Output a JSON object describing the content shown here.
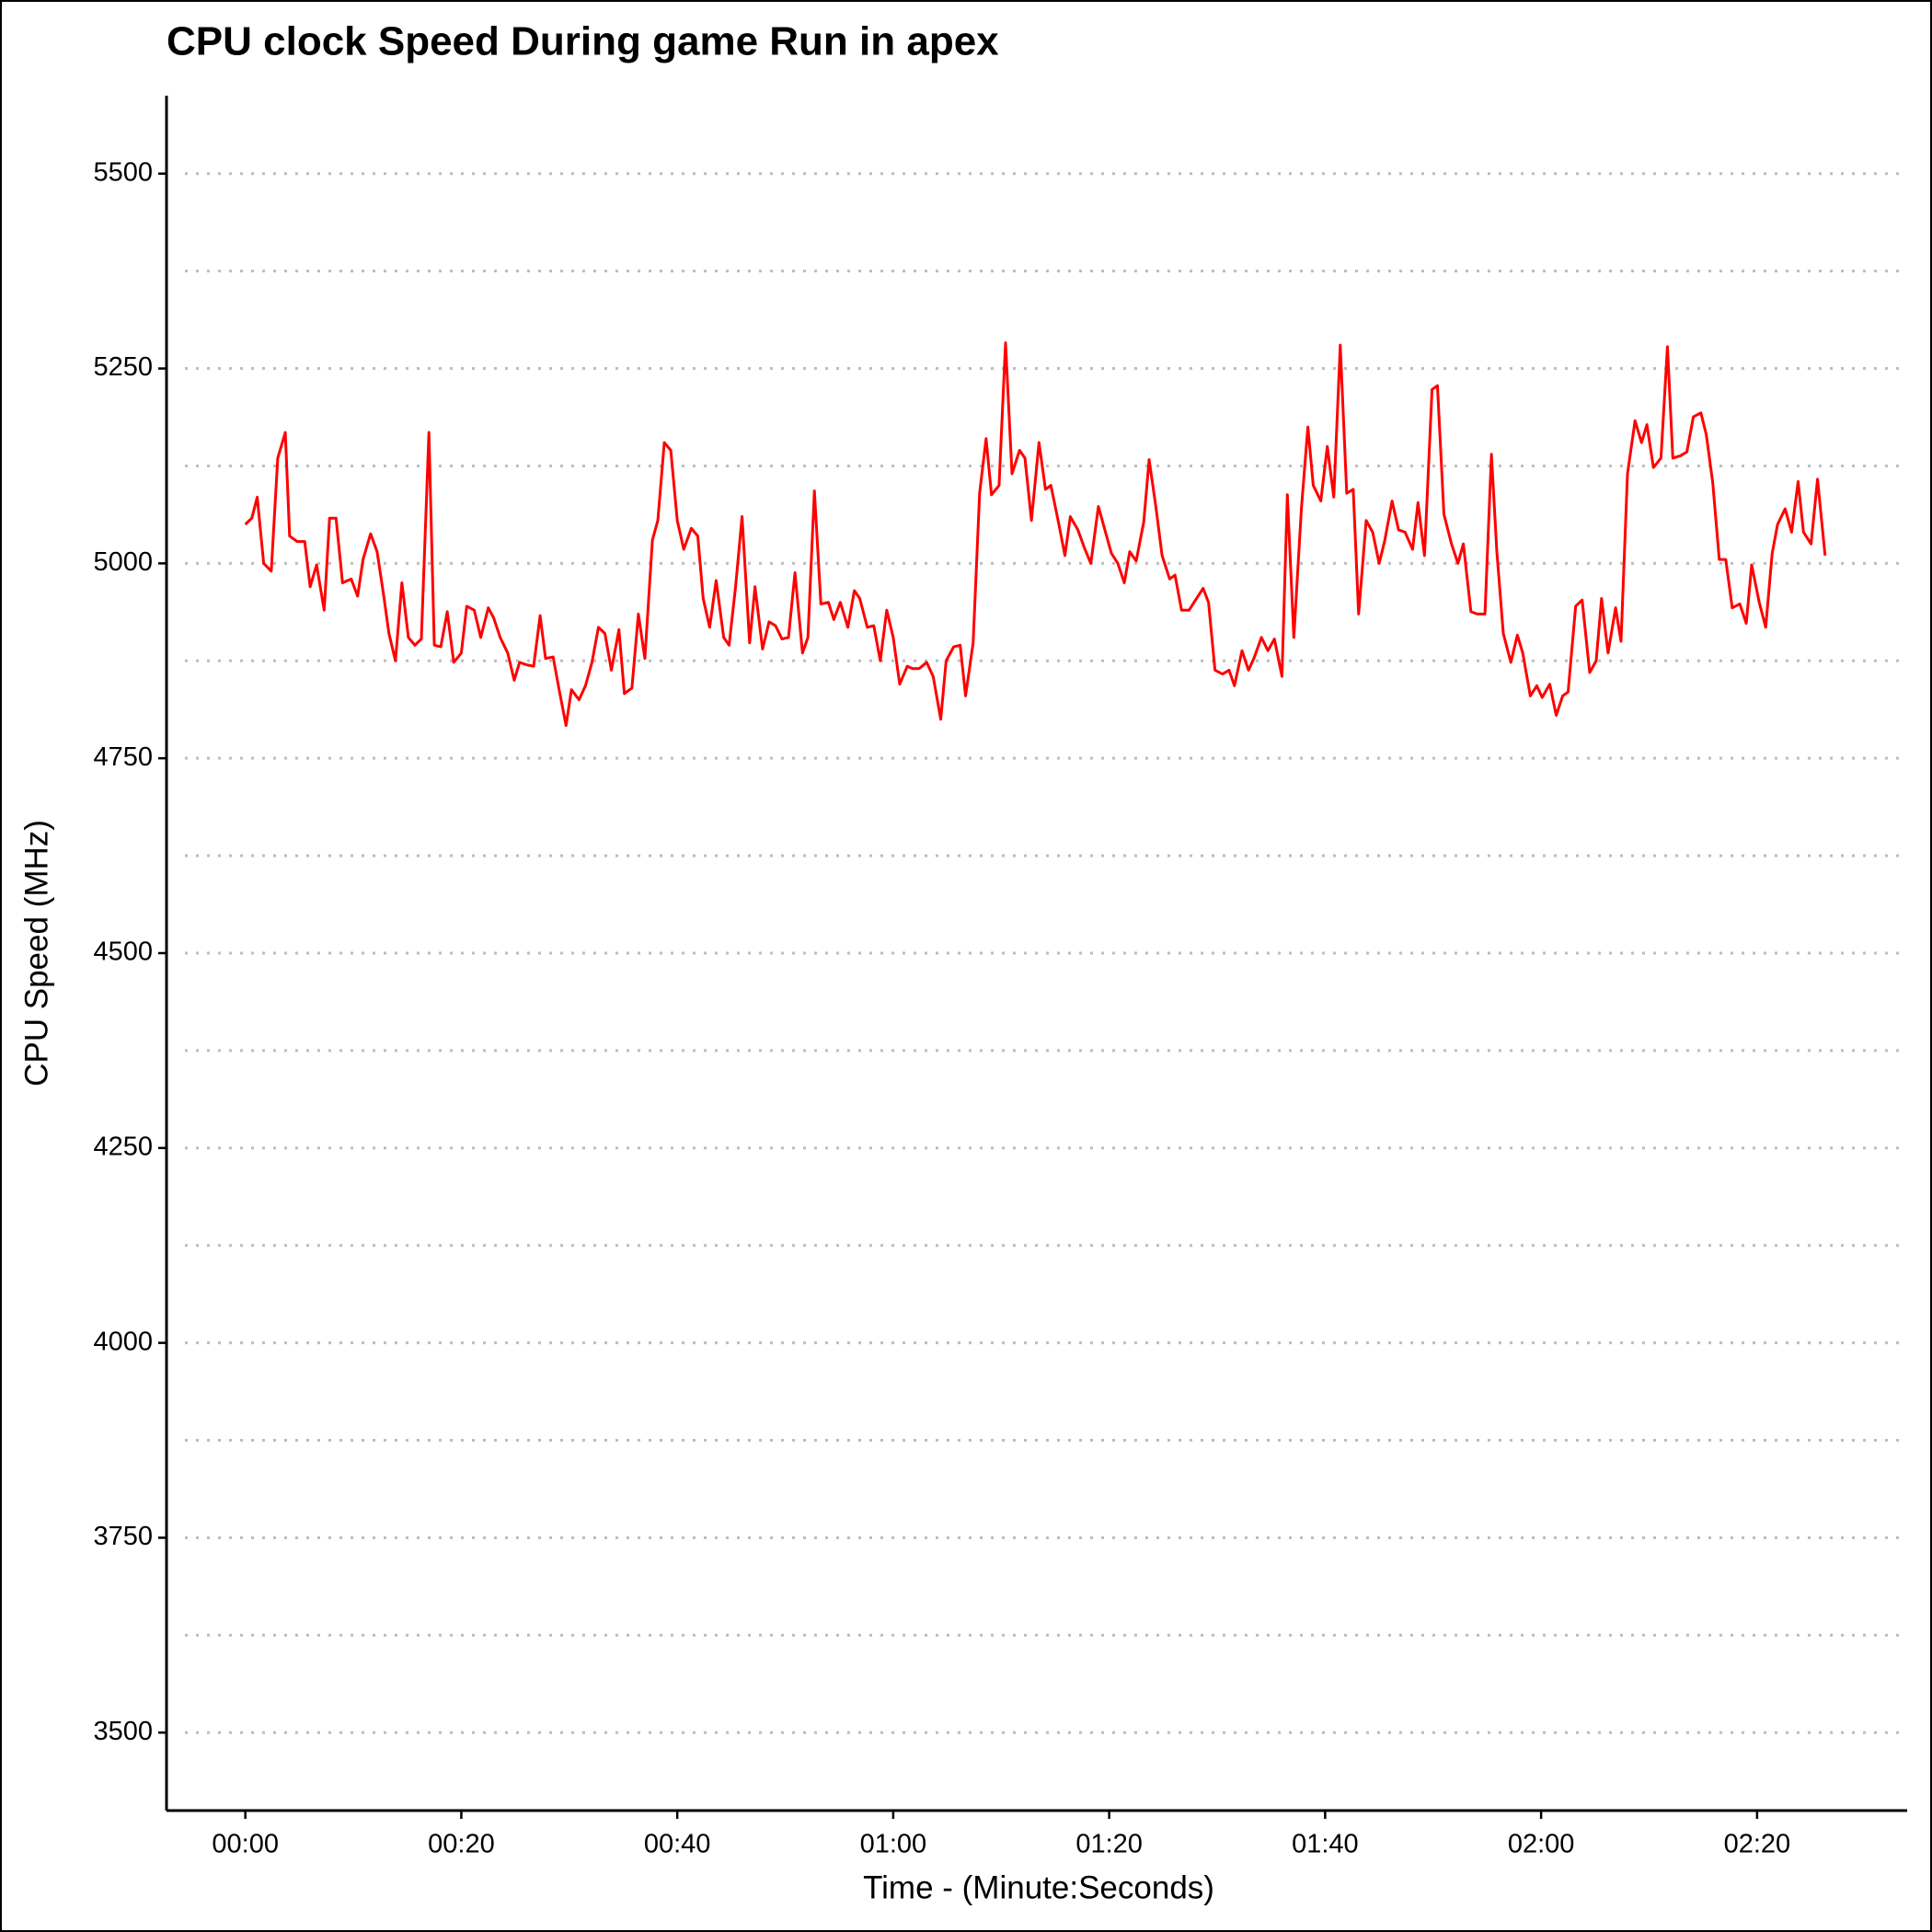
{
  "chart_data": {
    "type": "line",
    "title": "CPU clock Speed During game Run in apex",
    "x_label": "Time - (Minute:Seconds)",
    "y_label": "CPU Speed (MHz)",
    "xlim": [
      -7.3,
      153.9
    ],
    "ylim": [
      3400,
      5600
    ],
    "xticks": [
      {
        "value": 0,
        "label": "00:00"
      },
      {
        "value": 20,
        "label": "00:20"
      },
      {
        "value": 40,
        "label": "00:40"
      },
      {
        "value": 60,
        "label": "01:00"
      },
      {
        "value": 80,
        "label": "01:20"
      },
      {
        "value": 100,
        "label": "01:40"
      },
      {
        "value": 120,
        "label": "02:00"
      },
      {
        "value": 140,
        "label": "02:20"
      }
    ],
    "yticks": [
      3500,
      3750,
      4000,
      4250,
      4500,
      4750,
      5000,
      5250,
      5500
    ],
    "y_minor_grid": [
      3625,
      3875,
      4125,
      4375,
      4625,
      4875,
      5125,
      5375
    ],
    "grid": true,
    "x": [
      0,
      0.6,
      1.1,
      1.7,
      2.4,
      3.0,
      3.7,
      4.1,
      4.8,
      5.5,
      6.0,
      6.6,
      7.3,
      7.8,
      8.4,
      9.0,
      9.8,
      10.4,
      10.9,
      11.6,
      12.2,
      12.8,
      13.3,
      13.9,
      14.5,
      15.1,
      15.7,
      16.3,
      17.0,
      17.5,
      18.1,
      18.7,
      19.3,
      20.0,
      20.5,
      21.2,
      21.8,
      22.5,
      23.0,
      23.6,
      24.3,
      24.9,
      25.4,
      26.0,
      26.7,
      27.3,
      27.8,
      28.5,
      29.1,
      29.7,
      30.2,
      30.9,
      31.5,
      32.1,
      32.7,
      33.3,
      33.9,
      34.6,
      35.1,
      35.8,
      36.4,
      37.0,
      37.7,
      38.2,
      38.8,
      39.4,
      40.0,
      40.6,
      41.3,
      41.9,
      42.4,
      43.0,
      43.6,
      44.3,
      44.8,
      45.4,
      46.0,
      46.7,
      47.2,
      47.9,
      48.5,
      49.1,
      49.7,
      50.3,
      50.9,
      51.6,
      52.1,
      52.7,
      53.3,
      54.0,
      54.5,
      55.1,
      55.8,
      56.4,
      56.9,
      57.6,
      58.2,
      58.8,
      59.4,
      60.0,
      60.6,
      61.3,
      61.8,
      62.4,
      63.1,
      63.7,
      64.4,
      64.9,
      65.6,
      66.2,
      66.7,
      67.4,
      68.0,
      68.6,
      69.1,
      69.8,
      70.4,
      71.0,
      71.7,
      72.2,
      72.8,
      73.5,
      74.1,
      74.6,
      75.3,
      75.9,
      76.4,
      77.1,
      77.7,
      78.3,
      79.0,
      79.5,
      80.2,
      80.8,
      81.4,
      81.9,
      82.5,
      83.2,
      83.7,
      84.3,
      84.9,
      85.6,
      86.1,
      86.7,
      87.4,
      88.0,
      88.7,
      89.2,
      89.8,
      90.5,
      91.1,
      91.6,
      92.3,
      92.9,
      93.4,
      94.1,
      94.7,
      95.3,
      96.0,
      96.5,
      97.1,
      97.8,
      98.4,
      98.9,
      99.6,
      100.2,
      100.8,
      101.4,
      102.0,
      102.6,
      103.1,
      103.8,
      104.4,
      105.0,
      105.5,
      106.2,
      106.8,
      107.4,
      108.1,
      108.6,
      109.2,
      109.9,
      110.4,
      111.0,
      111.7,
      112.3,
      112.8,
      113.5,
      114.1,
      114.8,
      115.4,
      115.9,
      116.5,
      117.2,
      117.8,
      118.3,
      119.0,
      119.6,
      120.1,
      120.8,
      121.4,
      122.0,
      122.5,
      123.2,
      123.8,
      124.5,
      125.1,
      125.6,
      126.2,
      126.9,
      127.4,
      128.0,
      128.7,
      129.3,
      129.8,
      130.4,
      131.1,
      131.7,
      132.2,
      132.9,
      133.5,
      134.1,
      134.8,
      135.3,
      135.9,
      136.5,
      137.1,
      137.7,
      138.4,
      139.0,
      139.5,
      140.2,
      140.8,
      141.4,
      141.9,
      142.6,
      143.2,
      143.8,
      144.3,
      145.0,
      145.6,
      146.3
    ],
    "series": [
      {
        "color": "#ff0000",
        "values": [
          5050,
          5058,
          5085,
          5000,
          4990,
          5135,
          5168,
          5035,
          5028,
          5028,
          4970,
          4998,
          4940,
          5058,
          5058,
          4975,
          4980,
          4958,
          5005,
          5038,
          5015,
          4960,
          4910,
          4875,
          4975,
          4905,
          4895,
          4903,
          5168,
          4895,
          4893,
          4938,
          4873,
          4885,
          4945,
          4940,
          4905,
          4943,
          4930,
          4905,
          4885,
          4850,
          4873,
          4870,
          4868,
          4933,
          4878,
          4880,
          4835,
          4792,
          4838,
          4825,
          4843,
          4873,
          4918,
          4910,
          4863,
          4915,
          4833,
          4840,
          4935,
          4878,
          5030,
          5055,
          5155,
          5145,
          5055,
          5018,
          5045,
          5035,
          4955,
          4918,
          4978,
          4905,
          4895,
          4970,
          5060,
          4898,
          4970,
          4890,
          4925,
          4920,
          4903,
          4905,
          4988,
          4885,
          4905,
          5093,
          4948,
          4950,
          4928,
          4950,
          4918,
          4965,
          4955,
          4918,
          4920,
          4875,
          4940,
          4905,
          4845,
          4868,
          4865,
          4865,
          4873,
          4855,
          4800,
          4875,
          4893,
          4895,
          4830,
          4898,
          5090,
          5160,
          5088,
          5100,
          5283,
          5115,
          5145,
          5135,
          5055,
          5155,
          5095,
          5100,
          5053,
          5010,
          5060,
          5043,
          5020,
          5000,
          5073,
          5048,
          5013,
          5000,
          4975,
          5015,
          5003,
          5053,
          5133,
          5075,
          5010,
          4980,
          4985,
          4940,
          4940,
          4953,
          4968,
          4950,
          4863,
          4858,
          4863,
          4843,
          4888,
          4863,
          4878,
          4905,
          4888,
          4903,
          4855,
          5088,
          4905,
          5070,
          5175,
          5100,
          5080,
          5150,
          5085,
          5280,
          5090,
          5095,
          4935,
          5055,
          5040,
          5000,
          5028,
          5080,
          5043,
          5040,
          5018,
          5078,
          5010,
          5223,
          5228,
          5063,
          5025,
          5000,
          5025,
          4938,
          4935,
          4935,
          5140,
          5015,
          4910,
          4873,
          4908,
          4885,
          4830,
          4843,
          4828,
          4845,
          4805,
          4830,
          4835,
          4945,
          4953,
          4860,
          4875,
          4955,
          4885,
          4943,
          4900,
          5115,
          5183,
          5155,
          5178,
          5123,
          5135,
          5278,
          5135,
          5138,
          5143,
          5188,
          5193,
          5165,
          5103,
          5005,
          5005,
          4943,
          4948,
          4923,
          4998,
          4950,
          4918,
          5013,
          5050,
          5070,
          5040,
          5105,
          5040,
          5025,
          5108,
          5010
        ]
      }
    ]
  }
}
